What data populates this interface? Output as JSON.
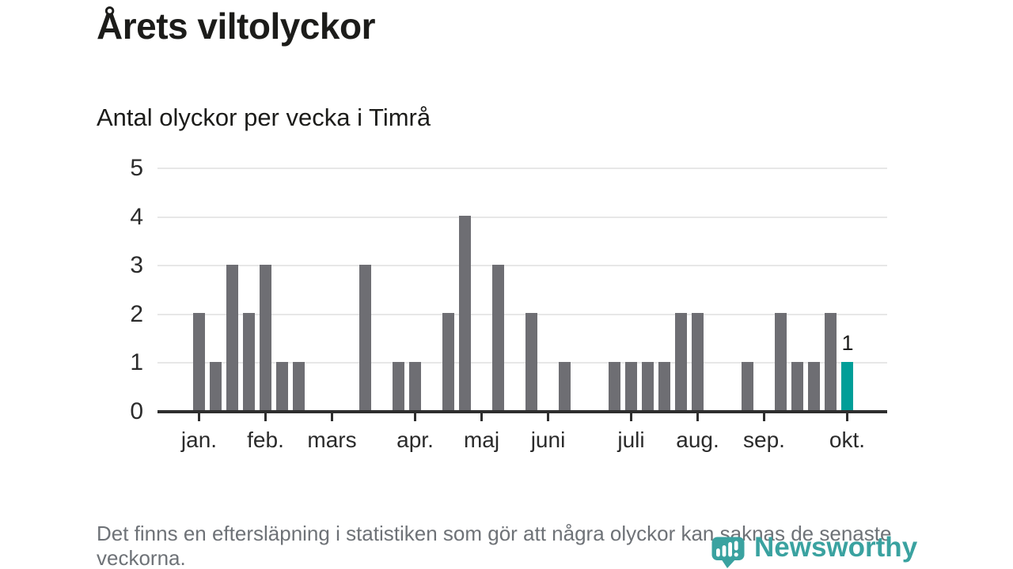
{
  "header": {
    "title": "Årets viltolyckor",
    "subtitle": "Antal olyckor per vecka i Timrå"
  },
  "chart_data": {
    "type": "bar",
    "title": "Antal olyckor per vecka i Timrå",
    "xlabel": "",
    "ylabel": "",
    "ylim": [
      0,
      5
    ],
    "yticks": [
      0,
      1,
      2,
      3,
      4,
      5
    ],
    "grid": true,
    "legend": "none",
    "values": [
      2,
      1,
      3,
      2,
      3,
      1,
      1,
      0,
      0,
      0,
      3,
      0,
      1,
      1,
      0,
      2,
      4,
      0,
      3,
      0,
      2,
      0,
      1,
      0,
      0,
      1,
      1,
      1,
      1,
      2,
      2,
      0,
      0,
      1,
      0,
      2,
      1,
      1,
      2,
      1
    ],
    "month_ticks": [
      {
        "slot": 0,
        "label": "jan."
      },
      {
        "slot": 4,
        "label": "feb."
      },
      {
        "slot": 8,
        "label": "mars"
      },
      {
        "slot": 13,
        "label": "apr."
      },
      {
        "slot": 17,
        "label": "maj"
      },
      {
        "slot": 21,
        "label": "juni"
      },
      {
        "slot": 26,
        "label": "juli"
      },
      {
        "slot": 30,
        "label": "aug."
      },
      {
        "slot": 34,
        "label": "sep."
      },
      {
        "slot": 39,
        "label": "okt."
      }
    ],
    "highlight": {
      "slot": 39,
      "value_label": "1"
    },
    "colors": {
      "bar": "#6e6e73",
      "highlight": "#009e98",
      "axis": "#2e2e2e",
      "grid": "#e7e7e7"
    }
  },
  "footer": {
    "note": "Det finns en eftersläpning i statistiken som gör att några olyckor kan saknas de senaste veckorna.",
    "logo_text": "Newsworthy",
    "logo_color": "#3aa2a0"
  }
}
